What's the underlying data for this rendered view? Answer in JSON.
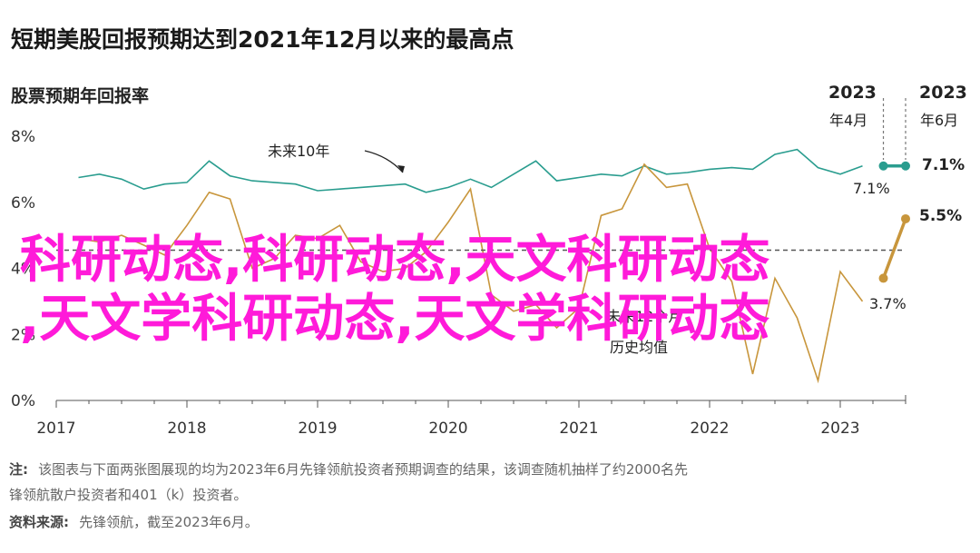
{
  "chart_data": {
    "type": "line",
    "title": "短期美股回报预期达到2021年12月以来的最高点",
    "ylabel": "股票预期年回报率",
    "ylim": [
      0,
      8
    ],
    "yticks": [
      "0%",
      "2%",
      "4%",
      "6%",
      "8%"
    ],
    "xlim": [
      2017,
      2023.5
    ],
    "xticks": [
      "2017",
      "2018",
      "2019",
      "2020",
      "2021",
      "2022",
      "2023"
    ],
    "grid": false,
    "series": [
      {
        "name": "未来10年",
        "color": "#2a9d8f",
        "x": [
          2017.17,
          2017.33,
          2017.5,
          2017.67,
          2017.83,
          2018.0,
          2018.17,
          2018.33,
          2018.5,
          2018.67,
          2018.83,
          2019.0,
          2019.17,
          2019.33,
          2019.5,
          2019.67,
          2019.83,
          2020.0,
          2020.17,
          2020.33,
          2020.5,
          2020.67,
          2020.83,
          2021.0,
          2021.17,
          2021.33,
          2021.5,
          2021.67,
          2021.83,
          2022.0,
          2022.17,
          2022.33,
          2022.5,
          2022.67,
          2022.83,
          2023.0,
          2023.17
        ],
        "values": [
          6.75,
          6.85,
          6.7,
          6.4,
          6.55,
          6.6,
          7.25,
          6.8,
          6.65,
          6.6,
          6.55,
          6.35,
          6.4,
          6.45,
          6.5,
          6.55,
          6.3,
          6.45,
          6.7,
          6.45,
          6.85,
          7.25,
          6.65,
          6.75,
          6.85,
          6.8,
          7.1,
          6.85,
          6.9,
          7.0,
          7.05,
          7.0,
          7.45,
          7.6,
          7.05,
          6.85,
          7.1
        ]
      },
      {
        "name": "未来12个月",
        "color": "#c8963c",
        "x": [
          2017.17,
          2017.33,
          2017.5,
          2017.67,
          2017.83,
          2018.0,
          2018.17,
          2018.33,
          2018.5,
          2018.67,
          2018.83,
          2019.0,
          2019.17,
          2019.33,
          2019.5,
          2019.67,
          2019.83,
          2020.0,
          2020.17,
          2020.33,
          2020.5,
          2020.67,
          2020.83,
          2021.0,
          2021.17,
          2021.33,
          2021.5,
          2021.67,
          2021.83,
          2022.0,
          2022.17,
          2022.33,
          2022.5,
          2022.67,
          2022.83,
          2023.0,
          2023.17
        ],
        "values": [
          4.9,
          4.8,
          5.0,
          4.7,
          4.4,
          5.3,
          6.3,
          6.1,
          4.0,
          4.3,
          5.0,
          4.9,
          5.3,
          4.2,
          3.9,
          4.0,
          4.5,
          5.4,
          6.4,
          3.2,
          2.7,
          2.9,
          2.2,
          2.8,
          5.6,
          5.8,
          7.15,
          6.45,
          6.55,
          4.6,
          3.6,
          0.8,
          3.7,
          2.5,
          0.6,
          3.9,
          3.0
        ]
      },
      {
        "name": "历史均值",
        "color": "#555555",
        "dashed": true,
        "x": [
          2017,
          2023.5
        ],
        "values": [
          4.55,
          4.55
        ]
      }
    ],
    "highlights": [
      {
        "series": "未来10年",
        "color": "#2a9d8f",
        "from_label": "2023年4月",
        "to_label": "2023年6月",
        "x": [
          2023.33,
          2023.5
        ],
        "values": [
          7.1,
          7.1
        ]
      },
      {
        "series": "未来12个月",
        "color": "#c8963c",
        "x": [
          2023.33,
          2023.5
        ],
        "values": [
          3.7,
          5.5
        ]
      }
    ],
    "annotations": {
      "series_label_10y": "未来10年",
      "series_label_12m": "未来12个月",
      "mean_label": "历史均值",
      "month_apr_year": "2023",
      "month_apr": "年4月",
      "month_jun_year": "2023",
      "month_jun": "年6月",
      "end_10y_apr": "7.1%",
      "end_10y_jun": "7.1%",
      "end_12m_apr": "3.7%",
      "end_12m_jun": "5.5%"
    }
  },
  "notes": {
    "note_label": "注:",
    "note_line1": "该图表与下面两张图展现的均为2023年6月先锋领航投资者预期调查的结果，该调查随机抽样了约2000名先",
    "note_line2": "锋领航散户投资者和401（k）投资者。",
    "source_label": "资料来源:",
    "source_text": "先锋领航，截至2023年6月。"
  },
  "watermark": {
    "line1": "科研动态,科研动态,天文科研动态",
    "line2": ",天文学科研动态,天文学科研动态"
  },
  "colors": {
    "teal": "#2a9d8f",
    "gold": "#c8963c",
    "watermark": "#ff1ad9"
  }
}
